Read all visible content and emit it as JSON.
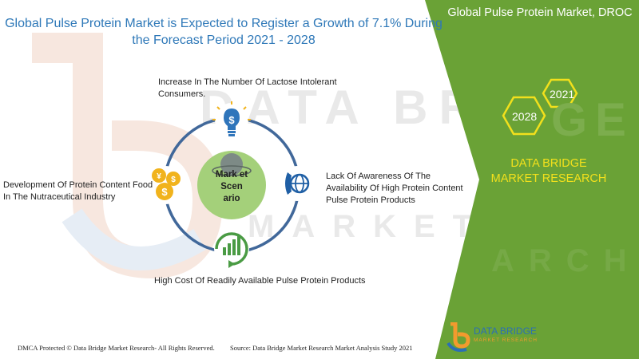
{
  "title": "Global Pulse Protein Market is Expected to Register a Growth of 7.1%  During the Forecast Period 2021 - 2028",
  "panel_title": "Global Pulse Protein Market, DROC",
  "years": {
    "start": "2021",
    "end": "2028"
  },
  "brand": "DATA BRIDGE MARKET RESEARCH",
  "center_label": "Mark et Scen ario",
  "drivers": {
    "top": "Increase In The Number Of Lactose Intolerant Consumers.",
    "left": "Development Of Protein Content Food In The Nutraceutical Industry",
    "right": "Lack Of Awareness  Of The Availability Of High Protein Content Pulse Protein Products",
    "bottom": "High Cost Of Readily Available Pulse Protein Products"
  },
  "icons": {
    "top": "dollar-bulb-icon",
    "left": "currency-coins-icon",
    "right": "phone-globe-icon",
    "bottom": "growth-chart-icon"
  },
  "footer": {
    "left": "DMCA Protected © Data Bridge Market Research- All Rights Reserved.",
    "right": "Source: Data Bridge Market Research Market Analysis Study 2021"
  },
  "logo": {
    "name": "DATA BRIDGE",
    "tagline": "MARKET RESEARCH"
  },
  "watermark": {
    "line1": "DATA BRIDGE",
    "line2": "MARKET RESEARCH"
  },
  "colors": {
    "title_blue": "#2e78b8",
    "panel_green": "#6aa236",
    "brand_yellow": "#f2e01c",
    "ring_blue": "#41689a",
    "center_green": "#a4d07a",
    "icon_blue": "#2f75bb",
    "icon_gold": "#f1b31c",
    "icon_green": "#4a9b44"
  }
}
